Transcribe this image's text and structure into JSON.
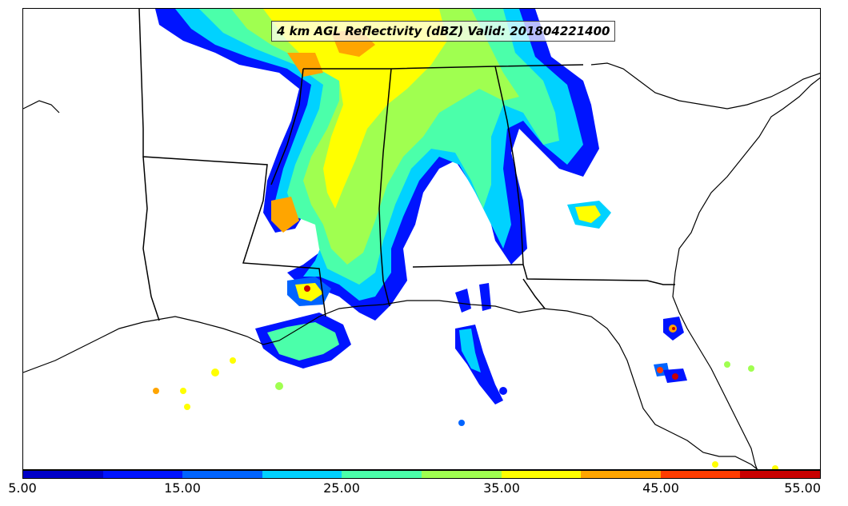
{
  "title": "4 km AGL Reflectivity (dBZ) Valid: 201804221400",
  "colorbar": {
    "tick_labels": [
      "5.00",
      "15.00",
      "25.00",
      "35.00",
      "45.00",
      "55.00"
    ],
    "colors": [
      "#0000c8",
      "#0014ff",
      "#0064ff",
      "#00d2ff",
      "#4bffaa",
      "#a0ff50",
      "#ffff00",
      "#ffa500",
      "#ff3c00",
      "#c80000"
    ]
  },
  "palette": {
    "coast": "#000000",
    "state_border": "#000000",
    "background": "#ffffff"
  }
}
